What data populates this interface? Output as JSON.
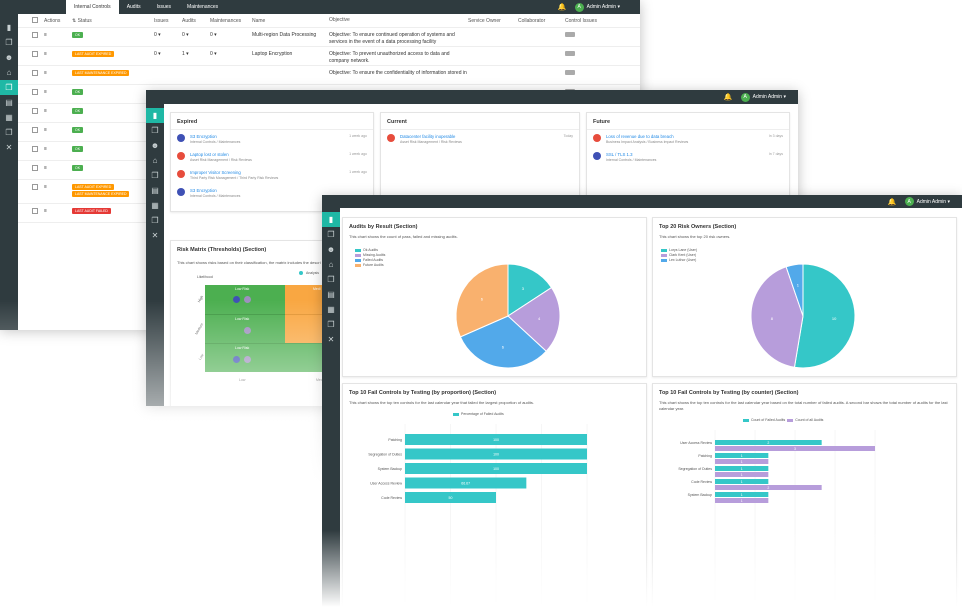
{
  "colors": {
    "accent": "#1fb8a5",
    "sidebar": "#2f3b3f",
    "teal": "#35c7c8",
    "purple": "#b79ddb",
    "blue": "#52a9ea",
    "orange": "#f9b16e",
    "red": "#e74c3c"
  },
  "user": {
    "initial": "A",
    "name": "Admin Admin"
  },
  "w1": {
    "tabs": [
      "Internal Controls",
      "Audits",
      "Issues",
      "Maintenances"
    ],
    "headers": [
      "Actions",
      "Status",
      "Issues",
      "Audits",
      "Maintenances",
      "Name",
      "Objective",
      "Service Owner",
      "Collaborator",
      "Control Issues"
    ],
    "rows": [
      {
        "status": [
          "OK"
        ],
        "st": [
          "g"
        ],
        "issues": "0",
        "audits": "0",
        "maint": "0",
        "name": "Multi-region Data Processing",
        "obj": "Objective: To ensure continued operation of systems and services in the event of a data processing facility"
      },
      {
        "status": [
          "LAST AUDIT EXPIRED"
        ],
        "st": [
          "o"
        ],
        "issues": "0",
        "audits": "1",
        "maint": "0",
        "name": "Laptop Encryption",
        "obj": "Objective: To prevent unauthorized access to data and company network."
      },
      {
        "status": [
          "LAST MAINTENANCE EXPIRED"
        ],
        "st": [
          "o"
        ],
        "issues": "",
        "audits": "",
        "maint": "",
        "name": "",
        "obj": "Objective: To ensure the confidentiality of information stored in"
      },
      {
        "status": [
          "OK"
        ],
        "st": [
          "g"
        ]
      },
      {
        "status": [
          "OK"
        ],
        "st": [
          "g"
        ]
      },
      {
        "status": [
          "OK"
        ],
        "st": [
          "g"
        ]
      },
      {
        "status": [
          "OK"
        ],
        "st": [
          "g"
        ]
      },
      {
        "status": [
          "OK"
        ],
        "st": [
          "g"
        ]
      },
      {
        "status": [
          "LAST AUDIT EXPIRED",
          "LAST MAINTENANCE EXPIRED"
        ],
        "st": [
          "o",
          "o"
        ]
      },
      {
        "status": [
          "LAST AUDIT FAILED"
        ],
        "st": [
          "r"
        ]
      }
    ]
  },
  "w2": {
    "expired": {
      "title": "Expired",
      "items": [
        {
          "t": "S3 Encryption",
          "s": "Internal Controls / Maintenances",
          "tm": "1 week ago",
          "c": "#3f51b5"
        },
        {
          "t": "Laptop lost or stolen",
          "s": "Asset Risk Management / Risk Reviews",
          "tm": "1 week ago",
          "c": "#e74c3c"
        },
        {
          "t": "Improper Visitor Screening",
          "s": "Third Party Risk Management / Third Party Risk Reviews",
          "tm": "1 week ago",
          "c": "#e74c3c"
        },
        {
          "t": "S3 Encryption",
          "s": "Internal Controls / Maintenances",
          "tm": "",
          "c": "#3f51b5"
        }
      ]
    },
    "current": {
      "title": "Current",
      "items": [
        {
          "t": "Datacenter facility inoperable",
          "s": "Asset Risk Management / Risk Reviews",
          "tm": "Today",
          "c": "#e74c3c"
        }
      ]
    },
    "future": {
      "title": "Future",
      "items": [
        {
          "t": "Loss of revenue due to data breach",
          "s": "Business Impact Analysis / Business Impact Reviews",
          "tm": "In 3 days",
          "c": "#e74c3c"
        },
        {
          "t": "SSL / TLS 1.3",
          "s": "Internal Controls / Maintenances",
          "tm": "In 7 days",
          "c": "#3f51b5"
        }
      ]
    },
    "matrix": {
      "title": "Risk Matrix (Thresholds) (Section)",
      "desc": "This chart shows risks based on their classification, the matrix includes the descri",
      "ylabel": "Likelihood",
      "legend": "Analysis",
      "rows": [
        "High",
        "Medium",
        "Low"
      ],
      "cols": [
        "Low",
        "Medium"
      ],
      "cell": "Low Risk",
      "cell2": "Medi"
    }
  },
  "w3": {
    "audits": {
      "title": "Audits by Result (Section)",
      "desc": "This chart shows the count of pass, failed and missing audits.",
      "legend": [
        "Ok Audits",
        "Missing Audits",
        "Failed Audits",
        "Future Audits"
      ]
    },
    "owners": {
      "title": "Top 20 Risk Owners (Section)",
      "desc": "This chart shows the top 20 risk owners.",
      "legend": [
        "Lorys Lane (User)",
        "Clark Kent (User)",
        "Lex Luthor (User)"
      ]
    },
    "prop": {
      "title": "Top 10 Fail Controls by Testing (by proportion) (Section)",
      "desc": "This chart shows the top ten controls for the last calendar year that failed the largest proportion of audits.",
      "legend": "Percentage of Failed Audits"
    },
    "count": {
      "title": "Top 10 Fail Controls by Testing (by counter) (Section)",
      "desc": "This chart shows the top ten controls for the last calendar year based on the total number of failed audits. A second bar shows the total number of audits for the last calendar year.",
      "legend": [
        "Count of Failed Audits",
        "Count of all Audits"
      ]
    }
  },
  "chart_data": [
    {
      "type": "pie",
      "title": "Audits by Result (Section)",
      "categories": [
        "Ok Audits",
        "Missing Audits",
        "Failed Audits",
        "Future Audits"
      ],
      "values": [
        3,
        4,
        6,
        6
      ]
    },
    {
      "type": "pie",
      "title": "Top 20 Risk Owners (Section)",
      "categories": [
        "Lorys Lane (User)",
        "Clark Kent (User)",
        "Lex Luthor (User)"
      ],
      "values": [
        10,
        8,
        1
      ]
    },
    {
      "type": "bar",
      "title": "Top 10 Fail Controls by Testing (by proportion) (Section)",
      "categories": [
        "Patching",
        "Segregation of Duties",
        "System Backup",
        "User Access Review",
        "Code Review"
      ],
      "series": [
        {
          "name": "Percentage of Failed Audits",
          "values": [
            100,
            100,
            100,
            66.67,
            50
          ]
        }
      ]
    },
    {
      "type": "bar",
      "title": "Top 10 Fail Controls by Testing (by counter) (Section)",
      "categories": [
        "User Access Review",
        "Patching",
        "Segregation of Duties",
        "Code Review",
        "System Backup"
      ],
      "series": [
        {
          "name": "Count of Failed Audits",
          "values": [
            2,
            1,
            1,
            1,
            1
          ]
        },
        {
          "name": "Count of all Audits",
          "values": [
            3,
            1,
            1,
            2,
            1
          ]
        }
      ]
    }
  ]
}
